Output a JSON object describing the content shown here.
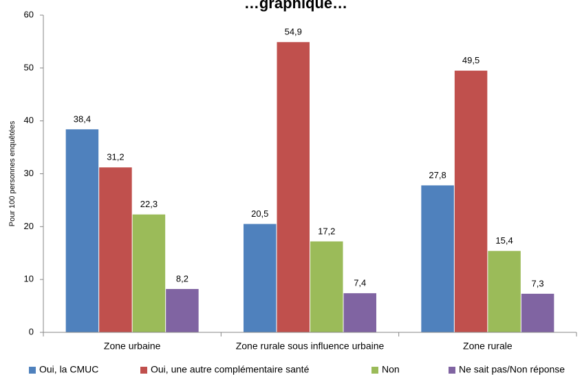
{
  "chart_data": {
    "type": "bar",
    "title": "…graphique…",
    "ylabel": "Pour 100 personnes enquêtées",
    "xlabel": "",
    "ylim": [
      0,
      60
    ],
    "yticks": [
      "0",
      "10",
      "20",
      "30",
      "40",
      "50",
      "60"
    ],
    "grid": false,
    "legend_position": "bottom",
    "categories": [
      "Zone urbaine",
      "Zone rurale sous influence urbaine",
      "Zone rurale"
    ],
    "series": [
      {
        "name": "Oui, la CMUC",
        "color": "#4F81BD",
        "values": [
          38.4,
          20.5,
          27.8
        ],
        "labels": [
          "38,4",
          "20,5",
          "27,8"
        ]
      },
      {
        "name": "Oui, une autre complémentaire santé",
        "color": "#C0504D",
        "values": [
          31.2,
          54.9,
          49.5
        ],
        "labels": [
          "31,2",
          "54,9",
          "49,5"
        ]
      },
      {
        "name": "Non",
        "color": "#9BBB59",
        "values": [
          22.3,
          17.2,
          15.4
        ],
        "labels": [
          "22,3",
          "17,2",
          "15,4"
        ]
      },
      {
        "name": "Ne sait pas/Non réponse",
        "color": "#8064A2",
        "values": [
          8.2,
          7.4,
          7.3
        ],
        "labels": [
          "8,2",
          "7,4",
          "7,3"
        ]
      }
    ]
  }
}
